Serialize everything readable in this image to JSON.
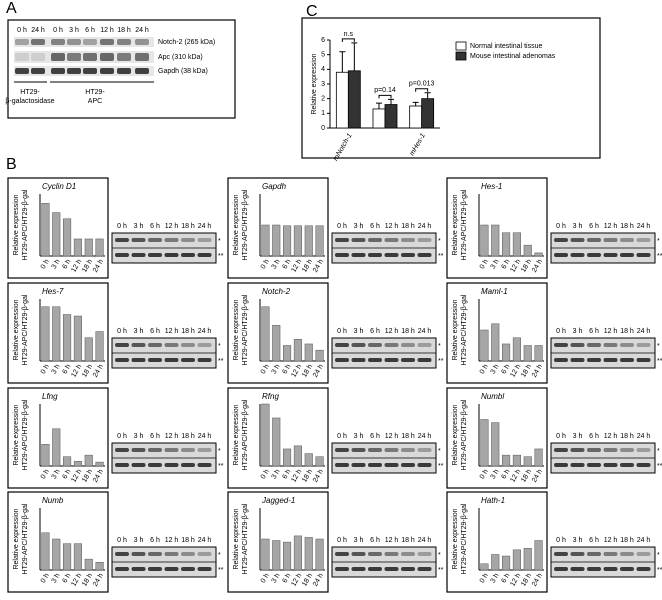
{
  "panel_labels": {
    "a": "A",
    "b": "B",
    "c": "C"
  },
  "panel_a": {
    "lanes": [
      "0 h",
      "24 h",
      "0 h",
      "3 h",
      "6 h",
      "12 h",
      "18 h",
      "24 h"
    ],
    "bands": [
      "Notch-2 (265 kDa)",
      "Apc (310 kDa)",
      "Gapdh (38 kDa)"
    ],
    "groups": [
      [
        "HT29-",
        "β-galactosidase"
      ],
      [
        "HT29-",
        "APC"
      ]
    ]
  },
  "gel_markers": [
    "*",
    "**"
  ],
  "chart_data": [
    {
      "type": "grouped_bar",
      "y_label": "Relative expression",
      "categories": [
        "mNotch-1",
        null,
        "mHes-1"
      ],
      "series": [
        {
          "name": "Normal intestinal tissue",
          "color": "#ffffff",
          "values": [
            3.8,
            1.3,
            1.5
          ],
          "errors": [
            1.4,
            0.4,
            0.25
          ]
        },
        {
          "name": "Mouse intestinal adenomas",
          "color": "#333333",
          "values": [
            3.9,
            1.6,
            2.0
          ],
          "errors": [
            1.9,
            0.35,
            0.4
          ]
        }
      ],
      "annotations": [
        "n.s",
        "p=0.14",
        "p=0.013"
      ],
      "ylim": [
        0,
        6
      ],
      "yticks": [
        0,
        1,
        2,
        3,
        4,
        5,
        6
      ],
      "legend": "right"
    },
    {
      "type": "bar",
      "title": "Cyclin D1",
      "y_label": [
        "Relative expression",
        "HT29-APC/HT29-β-gal"
      ],
      "categories": [
        "0 h",
        "3 h",
        "6 h",
        "12 h",
        "18 h",
        "24 h"
      ],
      "values": [
        3.4,
        2.8,
        2.4,
        1.1,
        1.1,
        1.1
      ],
      "ylim": [
        0,
        4
      ],
      "color": "#a6a6a6"
    },
    {
      "type": "bar",
      "title": "Gapdh",
      "y_label": [
        "Relative expression",
        "HT29-APC/HT29-β-gal"
      ],
      "categories": [
        "0 h",
        "3 h",
        "6 h",
        "12 h",
        "18 h",
        "24 h"
      ],
      "values": [
        2.0,
        2.0,
        1.95,
        1.95,
        1.95,
        1.95
      ],
      "ylim": [
        0,
        4
      ],
      "color": "#a6a6a6"
    },
    {
      "type": "bar",
      "title": "Hes-1",
      "y_label": [
        "Relative expression",
        "HT29-APC/HT29-β-gal"
      ],
      "categories": [
        "0 h",
        "3 h",
        "6 h",
        "12 h",
        "18 h",
        "24 h"
      ],
      "values": [
        2.0,
        2.0,
        1.5,
        1.5,
        0.7,
        0.2
      ],
      "ylim": [
        0,
        4
      ],
      "color": "#a6a6a6"
    },
    {
      "type": "bar",
      "title": "Hes-7",
      "y_label": [
        "Relative expression",
        "HT29-APC/HT29-β-gal"
      ],
      "categories": [
        "0 h",
        "3 h",
        "6 h",
        "12 h",
        "18 h",
        "24 h"
      ],
      "values": [
        3.5,
        3.5,
        3.0,
        2.9,
        1.5,
        1.9
      ],
      "ylim": [
        0,
        4
      ],
      "color": "#a6a6a6"
    },
    {
      "type": "bar",
      "title": "Notch-2",
      "y_label": [
        "Relative expression",
        "HT29-APC/HT29-β-gal"
      ],
      "categories": [
        "0 h",
        "3 h",
        "6 h",
        "12 h",
        "18 h",
        "24 h"
      ],
      "values": [
        3.5,
        2.3,
        1.0,
        1.4,
        1.1,
        0.7
      ],
      "ylim": [
        0,
        4
      ],
      "color": "#a6a6a6"
    },
    {
      "type": "bar",
      "title": "Maml-1",
      "y_label": [
        "Relative expression",
        "HT29-APC/HT29-β-gal"
      ],
      "categories": [
        "0 h",
        "3 h",
        "6 h",
        "12 h",
        "18 h",
        "24 h"
      ],
      "values": [
        2.0,
        2.4,
        1.1,
        1.5,
        1.0,
        1.0
      ],
      "ylim": [
        0,
        4
      ],
      "color": "#a6a6a6"
    },
    {
      "type": "bar",
      "title": "Lfng",
      "y_label": [
        "Relative expression",
        "HT29-APC/HT29-β-gal"
      ],
      "categories": [
        "0 h",
        "3 h",
        "6 h",
        "12 h",
        "18 h",
        "24 h"
      ],
      "values": [
        1.4,
        2.4,
        0.6,
        0.3,
        0.7,
        0.25
      ],
      "ylim": [
        0,
        4
      ],
      "color": "#a6a6a6"
    },
    {
      "type": "bar",
      "title": "Rfng",
      "y_label": [
        "Relative expression",
        "HT29-APC/HT29-β-gal"
      ],
      "categories": [
        "0 h",
        "3 h",
        "6 h",
        "12 h",
        "18 h",
        "24 h"
      ],
      "values": [
        4.0,
        3.1,
        1.1,
        1.3,
        0.8,
        0.6
      ],
      "ylim": [
        0,
        4
      ],
      "color": "#a6a6a6"
    },
    {
      "type": "bar",
      "title": "Numbl",
      "y_label": [
        "Relative expression",
        "HT29-APC/HT29-β-gal"
      ],
      "categories": [
        "0 h",
        "3 h",
        "6 h",
        "12 h",
        "18 h",
        "24 h"
      ],
      "values": [
        3.0,
        2.8,
        0.7,
        0.7,
        0.6,
        1.1
      ],
      "ylim": [
        0,
        4
      ],
      "color": "#a6a6a6"
    },
    {
      "type": "bar",
      "title": "Numb",
      "y_label": [
        "Relative expression",
        "HT29-APC/HT29-β-gal"
      ],
      "categories": [
        "0 h",
        "3 h",
        "6 h",
        "12 h",
        "18 h",
        "24 h"
      ],
      "values": [
        2.4,
        2.0,
        1.7,
        1.7,
        0.7,
        0.5
      ],
      "ylim": [
        0,
        4
      ],
      "color": "#a6a6a6"
    },
    {
      "type": "bar",
      "title": "Jagged-1",
      "y_label": [
        "Relative expression",
        "HT29-APC/HT29-β-gal"
      ],
      "categories": [
        "0 h",
        "3 h",
        "6 h",
        "12 h",
        "18 h",
        "24 h"
      ],
      "values": [
        2.0,
        1.9,
        1.8,
        2.2,
        2.1,
        2.0
      ],
      "ylim": [
        0,
        4
      ],
      "color": "#a6a6a6"
    },
    {
      "type": "bar",
      "title": "Hath-1",
      "y_label": [
        "Relative expression",
        "HT29-APC/HT29-β-gal"
      ],
      "categories": [
        "0 h",
        "3 h",
        "6 h",
        "12 h",
        "18 h",
        "24 h"
      ],
      "values": [
        0.4,
        1.0,
        0.9,
        1.3,
        1.4,
        1.9
      ],
      "ylim": [
        0,
        4
      ],
      "color": "#a6a6a6"
    }
  ]
}
